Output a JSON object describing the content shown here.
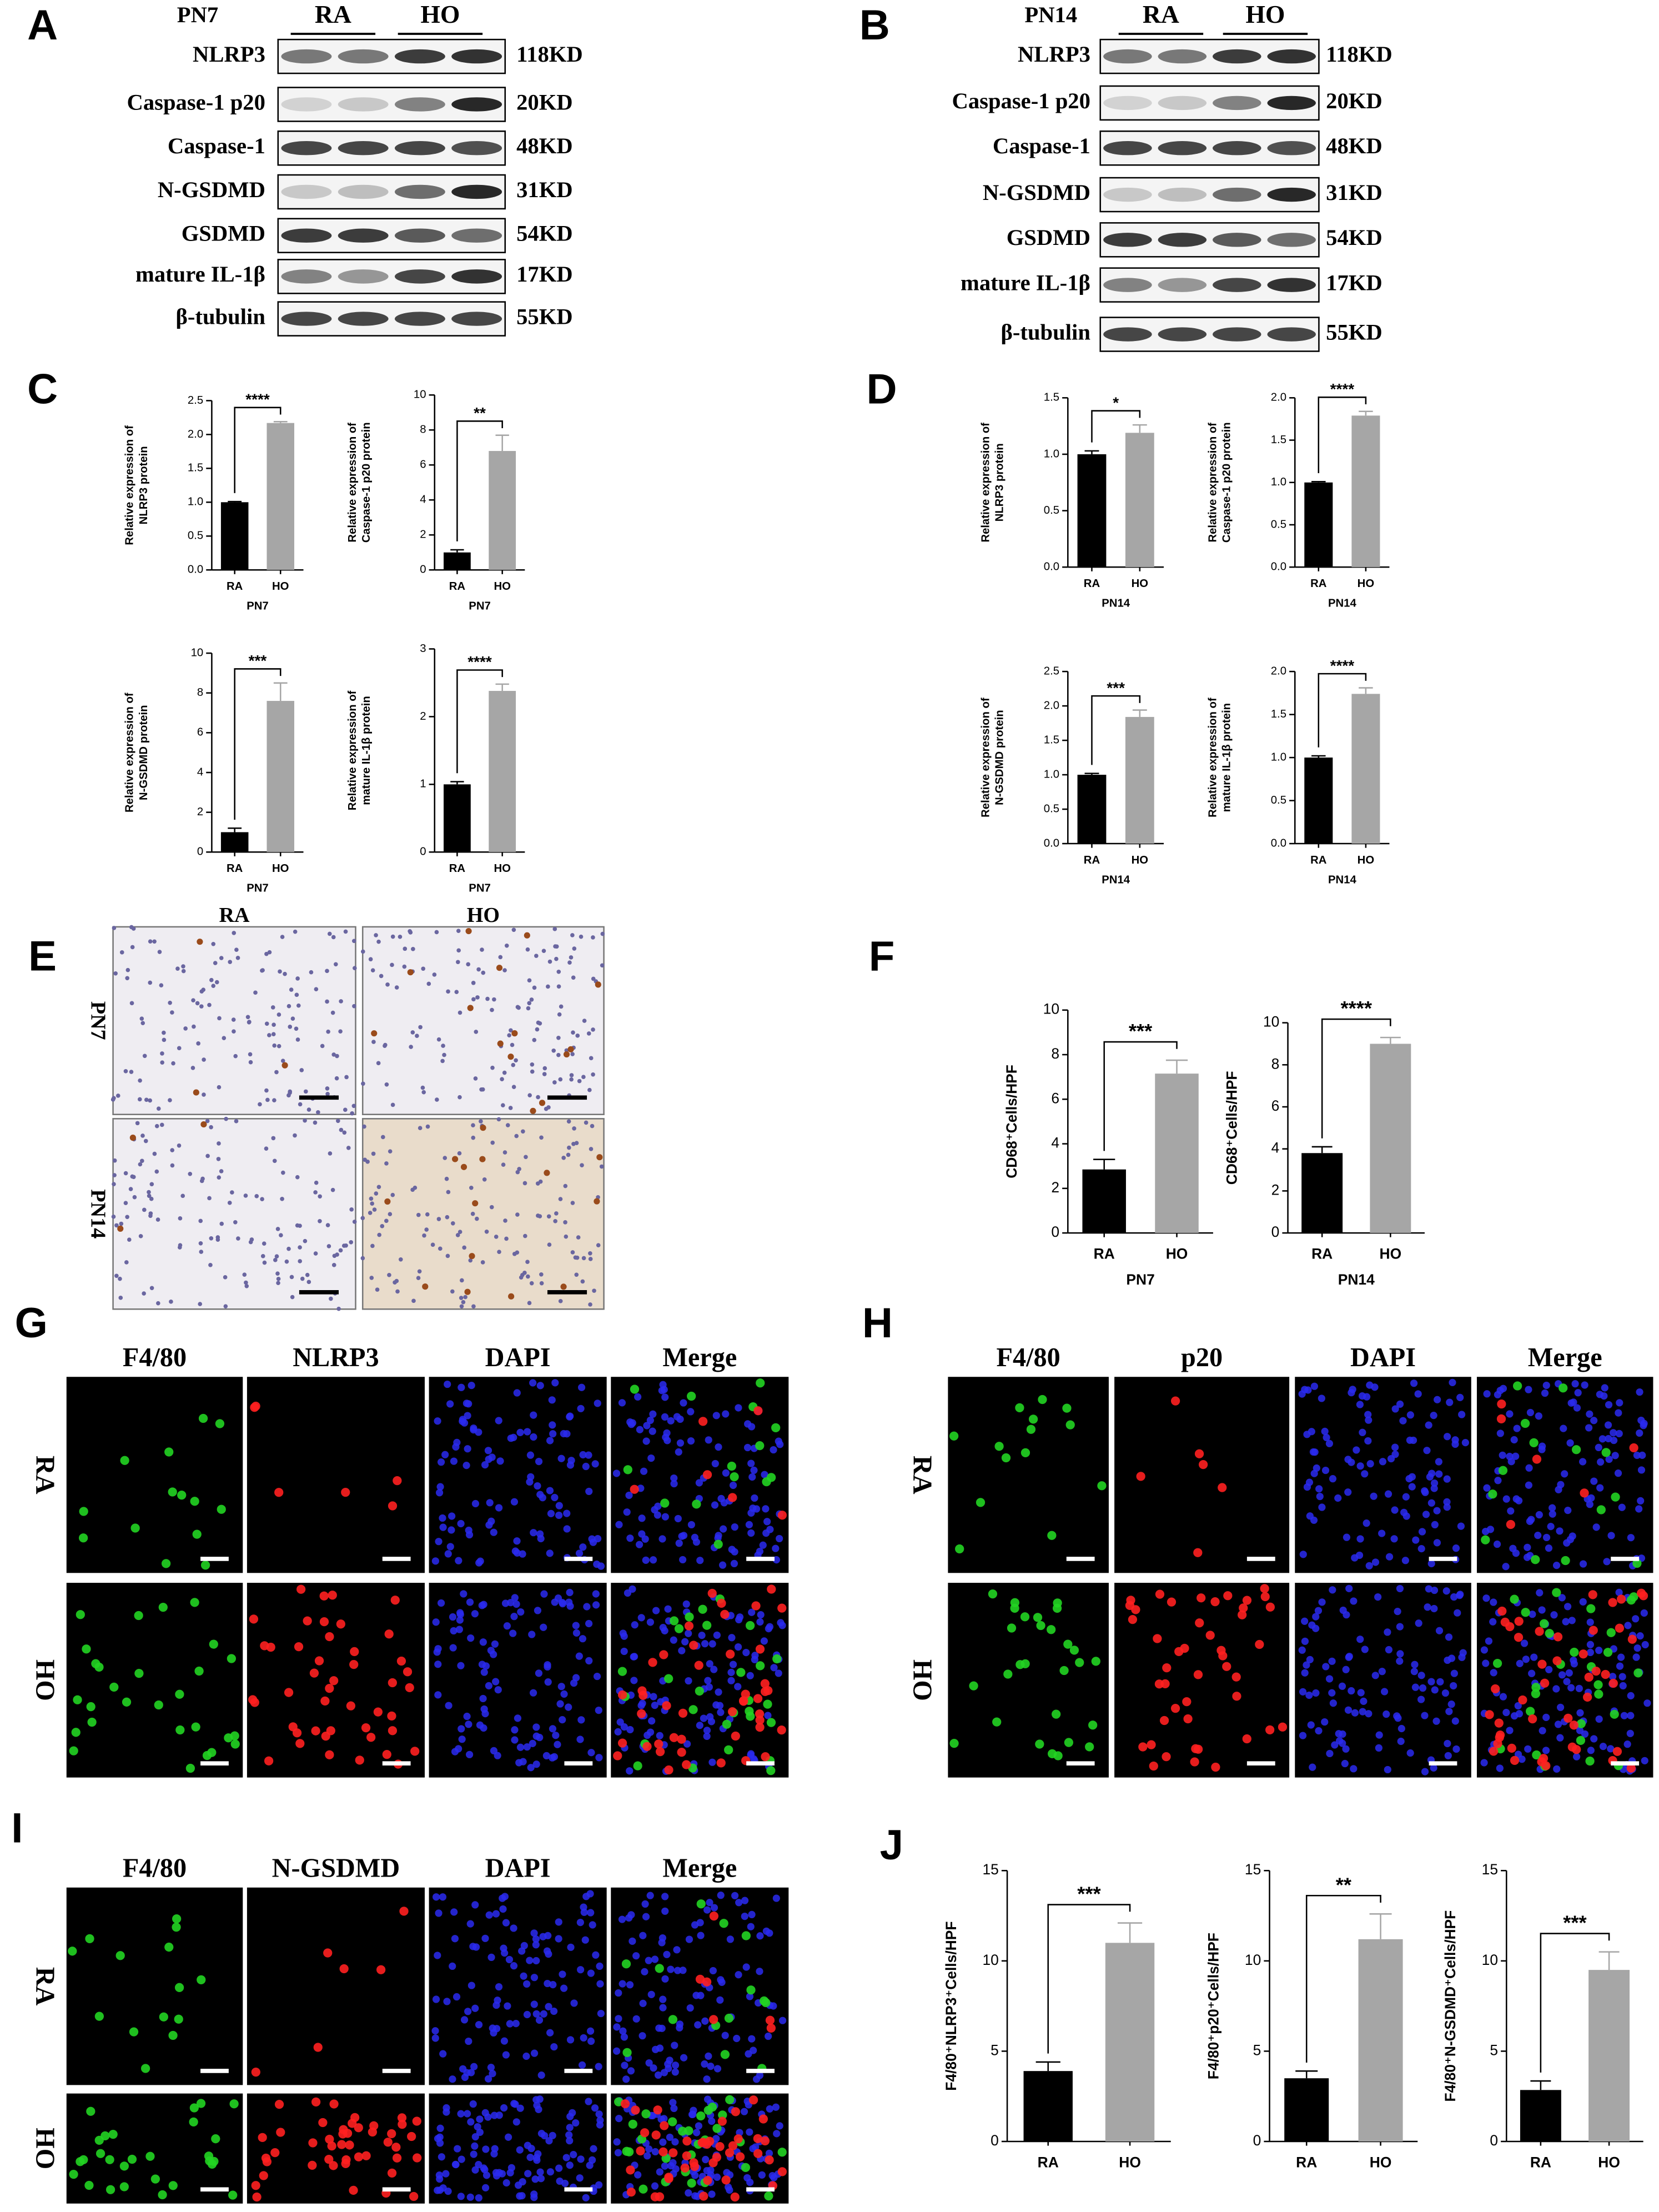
{
  "panel_labels": [
    "A",
    "B",
    "C",
    "D",
    "E",
    "F",
    "G",
    "H",
    "I",
    "J"
  ],
  "blots": [
    {
      "timepoint": "PN7",
      "groups": [
        "RA",
        "HO"
      ],
      "proteins": [
        "NLRP3",
        "Caspase-1 p20",
        "Caspase-1",
        "N-GSDMD",
        "GSDMD",
        "mature IL-1β",
        "β-tubulin"
      ],
      "sizes": [
        "118KD",
        "20KD",
        "48KD",
        "31KD",
        "54KD",
        "17KD",
        "55KD"
      ]
    },
    {
      "timepoint": "PN14",
      "groups": [
        "RA",
        "HO"
      ],
      "proteins": [
        "NLRP3",
        "Caspase-1 p20",
        "Caspase-1",
        "N-GSDMD",
        "GSDMD",
        "mature IL-1β",
        "β-tubulin"
      ],
      "sizes": [
        "118KD",
        "20KD",
        "48KD",
        "31KD",
        "54KD",
        "17KD",
        "55KD"
      ]
    }
  ],
  "ihc": {
    "columns": [
      "RA",
      "HO"
    ],
    "rows": [
      "PN7",
      "PN14"
    ]
  },
  "if_panels": [
    {
      "columns": [
        "F4/80",
        "NLRP3",
        "DAPI",
        "Merge"
      ],
      "rows": [
        "RA",
        "HO"
      ]
    },
    {
      "columns": [
        "F4/80",
        "p20",
        "DAPI",
        "Merge"
      ],
      "rows": [
        "RA",
        "HO"
      ]
    },
    {
      "columns": [
        "F4/80",
        "N-GSDMD",
        "DAPI",
        "Merge"
      ],
      "rows": [
        "RA",
        "HO"
      ]
    }
  ],
  "chart_data": [
    {
      "type": "bar",
      "ylabel": [
        "Relative expression of",
        "NLRP3 protein"
      ],
      "xlabel": "PN7",
      "categories": [
        "RA",
        "HO"
      ],
      "values": [
        1.0,
        2.17
      ],
      "errors": [
        0.01,
        0.02
      ],
      "colors": [
        "#000000",
        "#a6a6a6"
      ],
      "significance": "****",
      "ylim": [
        0,
        2.5
      ],
      "yticks": [
        {
          "value": 0,
          "label": "0.0"
        },
        0.5,
        {
          "value": 1,
          "label": "1.0"
        },
        1.5,
        {
          "value": 2,
          "label": "2.0"
        },
        2.5
      ]
    },
    {
      "type": "bar",
      "ylabel": [
        "Relative expression of",
        "Caspase-1 p20 protein"
      ],
      "xlabel": "PN7",
      "categories": [
        "RA",
        "HO"
      ],
      "values": [
        1.0,
        6.8
      ],
      "errors": [
        0.15,
        0.9
      ],
      "colors": [
        "#000000",
        "#a6a6a6"
      ],
      "significance": "**",
      "ylim": [
        0,
        10
      ],
      "yticks": [
        0,
        2,
        4,
        6,
        8,
        10
      ]
    },
    {
      "type": "bar",
      "ylabel": [
        "Relative expression of",
        "N-GSDMD protein"
      ],
      "xlabel": "PN7",
      "categories": [
        "RA",
        "HO"
      ],
      "values": [
        1.0,
        7.6
      ],
      "errors": [
        0.2,
        0.9
      ],
      "colors": [
        "#000000",
        "#a6a6a6"
      ],
      "significance": "***",
      "ylim": [
        0,
        10
      ],
      "yticks": [
        0,
        2,
        4,
        6,
        8,
        10
      ]
    },
    {
      "type": "bar",
      "ylabel": [
        "Relative expression of",
        "mature IL-1β protein"
      ],
      "xlabel": "PN7",
      "categories": [
        "RA",
        "HO"
      ],
      "values": [
        1.0,
        2.38
      ],
      "errors": [
        0.04,
        0.1
      ],
      "colors": [
        "#000000",
        "#a6a6a6"
      ],
      "significance": "****",
      "ylim": [
        0,
        3
      ],
      "yticks": [
        0,
        1,
        2,
        3
      ]
    },
    {
      "type": "bar",
      "ylabel": [
        "Relative expression of",
        "NLRP3 protein"
      ],
      "xlabel": "PN14",
      "categories": [
        "RA",
        "HO"
      ],
      "values": [
        1.0,
        1.19
      ],
      "errors": [
        0.03,
        0.07
      ],
      "colors": [
        "#000000",
        "#a6a6a6"
      ],
      "significance": "*",
      "ylim": [
        0,
        1.5
      ],
      "yticks": [
        {
          "value": 0,
          "label": "0.0"
        },
        0.5,
        {
          "value": 1,
          "label": "1.0"
        },
        1.5
      ]
    },
    {
      "type": "bar",
      "ylabel": [
        "Relative expression of",
        "Caspase-1 p20 protein"
      ],
      "xlabel": "PN14",
      "categories": [
        "RA",
        "HO"
      ],
      "values": [
        1.0,
        1.79
      ],
      "errors": [
        0.01,
        0.05
      ],
      "colors": [
        "#000000",
        "#a6a6a6"
      ],
      "significance": "****",
      "ylim": [
        0,
        2
      ],
      "yticks": [
        {
          "value": 0,
          "label": "0.0"
        },
        0.5,
        {
          "value": 1,
          "label": "1.0"
        },
        1.5,
        {
          "value": 2,
          "label": "2.0"
        }
      ]
    },
    {
      "type": "bar",
      "ylabel": [
        "Relative expression of",
        "N-GSDMD protein"
      ],
      "xlabel": "PN14",
      "categories": [
        "RA",
        "HO"
      ],
      "values": [
        1.0,
        1.84
      ],
      "errors": [
        0.02,
        0.1
      ],
      "colors": [
        "#000000",
        "#a6a6a6"
      ],
      "significance": "***",
      "ylim": [
        0,
        2.5
      ],
      "yticks": [
        {
          "value": 0,
          "label": "0.0"
        },
        0.5,
        {
          "value": 1,
          "label": "1.0"
        },
        1.5,
        {
          "value": 2,
          "label": "2.0"
        },
        2.5
      ]
    },
    {
      "type": "bar",
      "ylabel": [
        "Relative expression of",
        "mature IL-1β protein"
      ],
      "xlabel": "PN14",
      "categories": [
        "RA",
        "HO"
      ],
      "values": [
        1.0,
        1.74
      ],
      "errors": [
        0.02,
        0.07
      ],
      "colors": [
        "#000000",
        "#a6a6a6"
      ],
      "significance": "****",
      "ylim": [
        0,
        2
      ],
      "yticks": [
        {
          "value": 0,
          "label": "0.0"
        },
        0.5,
        {
          "value": 1,
          "label": "1.0"
        },
        1.5,
        {
          "value": 2,
          "label": "2.0"
        }
      ]
    },
    {
      "type": "bar",
      "ylabel": [
        "CD68⁺Cells/HPF"
      ],
      "xlabel": "PN7",
      "categories": [
        "RA",
        "HO"
      ],
      "values": [
        2.85,
        7.15
      ],
      "errors": [
        0.45,
        0.6
      ],
      "colors": [
        "#000000",
        "#a6a6a6"
      ],
      "significance": "***",
      "ylim": [
        0,
        10
      ],
      "yticks": [
        0,
        2,
        4,
        6,
        8,
        10
      ]
    },
    {
      "type": "bar",
      "ylabel": [
        "CD68⁺Cells/HPF"
      ],
      "xlabel": "PN14",
      "categories": [
        "RA",
        "HO"
      ],
      "values": [
        3.8,
        9.0
      ],
      "errors": [
        0.3,
        0.3
      ],
      "colors": [
        "#000000",
        "#a6a6a6"
      ],
      "significance": "****",
      "ylim": [
        0,
        10
      ],
      "yticks": [
        0,
        2,
        4,
        6,
        8,
        10
      ]
    },
    {
      "type": "bar",
      "ylabel": [
        "F4/80⁺NLRP3⁺Cells/HPF"
      ],
      "categories": [
        "RA",
        "HO"
      ],
      "values": [
        3.9,
        11.0
      ],
      "errors": [
        0.5,
        1.1
      ],
      "colors": [
        "#000000",
        "#a6a6a6"
      ],
      "significance": "***",
      "ylim": [
        0,
        15
      ],
      "yticks": [
        0,
        5,
        10,
        15
      ]
    },
    {
      "type": "bar",
      "ylabel": [
        "F4/80⁺p20⁺Cells/HPF"
      ],
      "categories": [
        "RA",
        "HO"
      ],
      "values": [
        3.5,
        11.2
      ],
      "errors": [
        0.4,
        1.4
      ],
      "colors": [
        "#000000",
        "#a6a6a6"
      ],
      "significance": "**",
      "ylim": [
        0,
        15
      ],
      "yticks": [
        0,
        5,
        10,
        15
      ]
    },
    {
      "type": "bar",
      "ylabel": [
        "F4/80⁺N-GSDMD⁺Cells/HPF"
      ],
      "categories": [
        "RA",
        "HO"
      ],
      "values": [
        2.85,
        9.5
      ],
      "errors": [
        0.5,
        1.0
      ],
      "colors": [
        "#000000",
        "#a6a6a6"
      ],
      "significance": "***",
      "ylim": [
        0,
        15
      ],
      "yticks": [
        0,
        5,
        10,
        15
      ]
    }
  ]
}
